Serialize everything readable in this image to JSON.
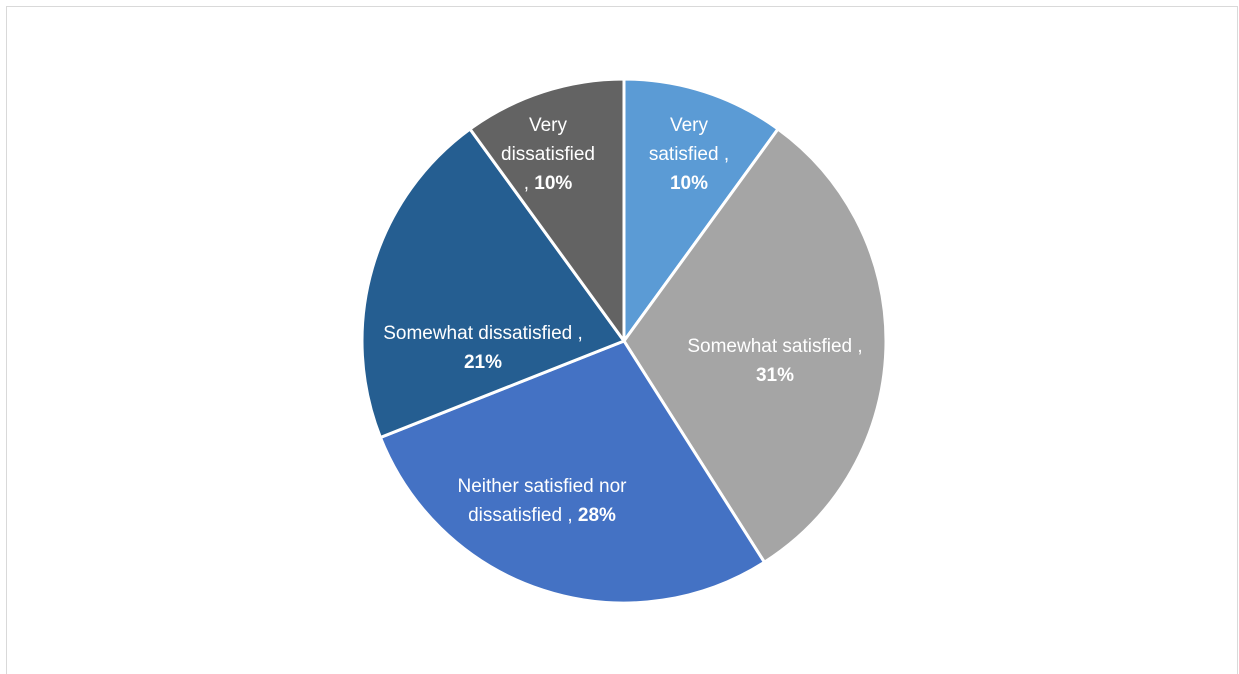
{
  "chart_data": {
    "type": "pie",
    "slices": [
      {
        "label": "Very satisfied ,",
        "value": 10,
        "display": "10%",
        "color": "#5b9bd5"
      },
      {
        "label": "Somewhat satisfied ,",
        "value": 31,
        "display": "31%",
        "color": "#a5a5a5"
      },
      {
        "label": "Neither satisfied nor dissatisfied ,",
        "value": 28,
        "display": "28%",
        "color": "#4472c4"
      },
      {
        "label": "Somewhat dissatisfied ,",
        "value": 21,
        "display": "21%",
        "color": "#255e91"
      },
      {
        "label": "Very dissatisfied",
        "value": 10,
        "display": "10%",
        "color": "#636363"
      }
    ],
    "start_angle_deg": 0,
    "direction": "clockwise",
    "label_position": "inside",
    "slice_border_color": "#ffffff"
  }
}
